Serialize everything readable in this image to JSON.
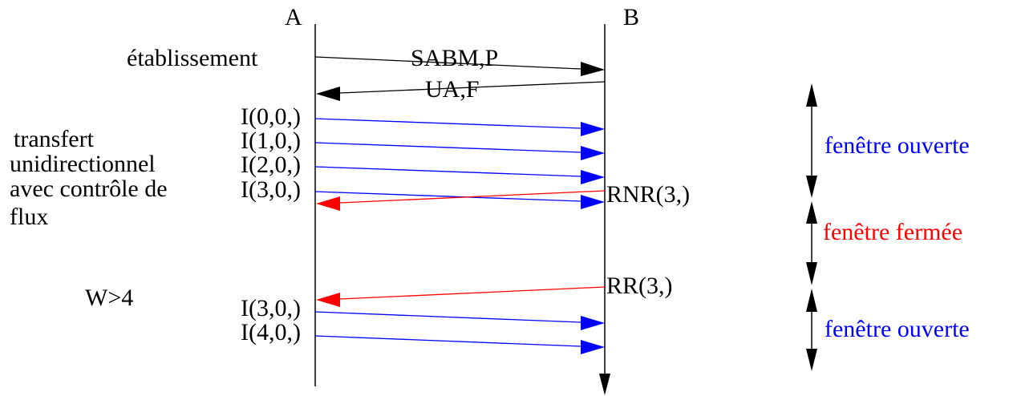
{
  "stations": {
    "a": "A",
    "b": "B"
  },
  "colors": {
    "black": "#000000",
    "blue": "#0000ff",
    "red": "#ff0000"
  },
  "phases": {
    "establishment": "établissement",
    "transfer": [
      "transfert",
      "unidirectionnel",
      "avec contrôle de",
      "flux"
    ],
    "window_note": "W>4"
  },
  "frames": {
    "sabm": "SABM,P",
    "ua": "UA,F",
    "i00": "I(0,0,)",
    "i10": "I(1,0,)",
    "i20": "I(2,0,)",
    "i30": "I(3,0,)",
    "rnr": "RNR(3,)",
    "rr": "RR(3,)",
    "i30b": "I(3,0,)",
    "i40": "I(4,0,)"
  },
  "windows": {
    "open1": "fenêtre ouverte",
    "closed": "fenêtre fermée",
    "open2": "fenêtre ouverte"
  }
}
